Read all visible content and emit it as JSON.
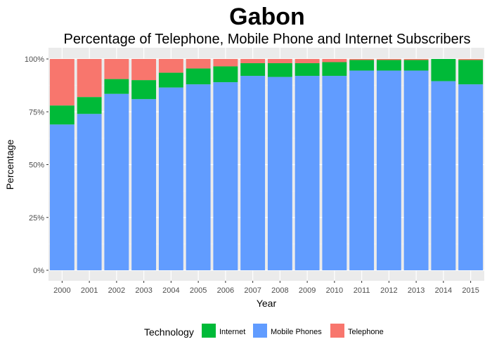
{
  "chart_data": {
    "type": "bar",
    "stacked": true,
    "percent": true,
    "title": "Gabon",
    "subtitle": "Percentage of Telephone, Mobile Phone and Internet Subscribers",
    "xlabel": "Year",
    "ylabel": "Percentage",
    "categories": [
      "2000",
      "2001",
      "2002",
      "2003",
      "2004",
      "2005",
      "2006",
      "2007",
      "2008",
      "2009",
      "2010",
      "2011",
      "2012",
      "2013",
      "2014",
      "2015"
    ],
    "ylim": [
      0,
      100
    ],
    "yticks": [
      "0%",
      "25%",
      "50%",
      "75%",
      "100%"
    ],
    "grid": true,
    "legend": {
      "title": "Technology",
      "position": "bottom"
    },
    "series": [
      {
        "name": "Mobile Phones",
        "color": "#619CFF",
        "values": [
          69,
          74,
          83.5,
          81,
          86.5,
          88,
          89,
          92,
          91.5,
          92,
          92,
          94.5,
          94.5,
          94.5,
          89.5,
          88
        ]
      },
      {
        "name": "Internet",
        "color": "#00BA38",
        "values": [
          9,
          8,
          7,
          9,
          7,
          7.5,
          7.5,
          6,
          6.5,
          6,
          6.5,
          5,
          5,
          5,
          10.5,
          11.5
        ]
      },
      {
        "name": "Telephone",
        "color": "#F8766D",
        "values": [
          22,
          18,
          9.5,
          10,
          6.5,
          4.5,
          3.5,
          2,
          2,
          2,
          1.5,
          0.5,
          0.5,
          0.5,
          0,
          0.5
        ]
      }
    ],
    "legend_order": [
      "Internet",
      "Mobile Phones",
      "Telephone"
    ]
  }
}
